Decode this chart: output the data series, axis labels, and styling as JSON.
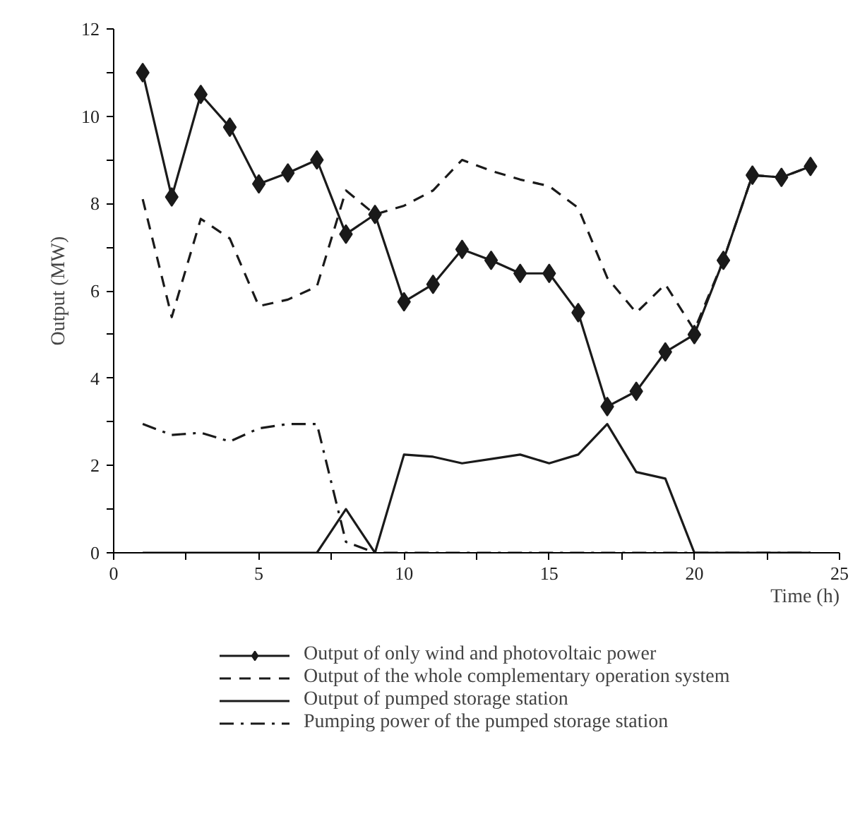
{
  "chart_data": {
    "type": "line",
    "xlabel": "Time (h)",
    "ylabel": "Output (MW)",
    "x": [
      1,
      2,
      3,
      4,
      5,
      6,
      7,
      8,
      9,
      10,
      11,
      12,
      13,
      14,
      15,
      16,
      17,
      18,
      19,
      20,
      21,
      22,
      23,
      24
    ],
    "series": [
      {
        "name": "Output of only wind and photovoltaic power",
        "color": "#1a1a1a",
        "marker": "diamond",
        "line_style": "solid",
        "values": [
          11,
          8.15,
          10.5,
          9.75,
          8.45,
          8.7,
          9.0,
          7.3,
          7.75,
          5.75,
          6.15,
          6.95,
          6.7,
          6.4,
          6.4,
          5.5,
          3.35,
          3.7,
          4.6,
          5.0,
          6.7,
          8.65,
          8.6,
          8.85
        ]
      },
      {
        "name": "Output of the whole complementary operation system",
        "color": "#1a1a1a",
        "marker": "none",
        "line_style": "dashed",
        "values": [
          8.1,
          5.4,
          7.65,
          7.2,
          5.65,
          5.8,
          6.1,
          8.3,
          7.75,
          7.95,
          8.3,
          9.0,
          8.75,
          8.55,
          8.4,
          7.9,
          6.3,
          5.5,
          6.15,
          5.1,
          6.7,
          8.65,
          8.6,
          8.85
        ]
      },
      {
        "name": "Output of pumped storage station",
        "color": "#1a1a1a",
        "marker": "none",
        "line_style": "solid",
        "values": [
          0,
          0,
          0,
          0,
          0,
          0,
          0,
          1.0,
          0,
          2.25,
          2.2,
          2.05,
          2.15,
          2.25,
          2.05,
          2.25,
          2.95,
          1.85,
          1.7,
          0,
          0,
          0,
          0,
          0
        ]
      },
      {
        "name": "Pumping power of the pumped storage station",
        "color": "#1a1a1a",
        "marker": "none",
        "line_style": "dashdot",
        "values": [
          2.95,
          2.7,
          2.75,
          2.55,
          2.85,
          2.95,
          2.95,
          0.25,
          0,
          0,
          0,
          0,
          0,
          0,
          0,
          0,
          0,
          0,
          0,
          0,
          0,
          0,
          0,
          0
        ]
      }
    ],
    "xlim": [
      0,
      25
    ],
    "ylim": [
      0,
      12
    ],
    "xticks": [
      0,
      {
        "value": 2.5,
        "label": null
      },
      5,
      {
        "value": 7.5,
        "label": null
      },
      10,
      {
        "value": 12.5,
        "label": null
      },
      15,
      {
        "value": 17.5,
        "label": null
      },
      20,
      {
        "value": 22.5,
        "label": null
      },
      25
    ],
    "yticks": [
      0,
      {
        "value": 1,
        "label": null
      },
      2,
      {
        "value": 3,
        "label": null
      },
      4,
      {
        "value": 5,
        "label": null
      },
      6,
      {
        "value": 7,
        "label": null
      },
      8,
      {
        "value": 9,
        "label": null
      },
      10,
      {
        "value": 11,
        "label": null
      },
      12
    ],
    "grid": false,
    "legend": "bottom"
  }
}
